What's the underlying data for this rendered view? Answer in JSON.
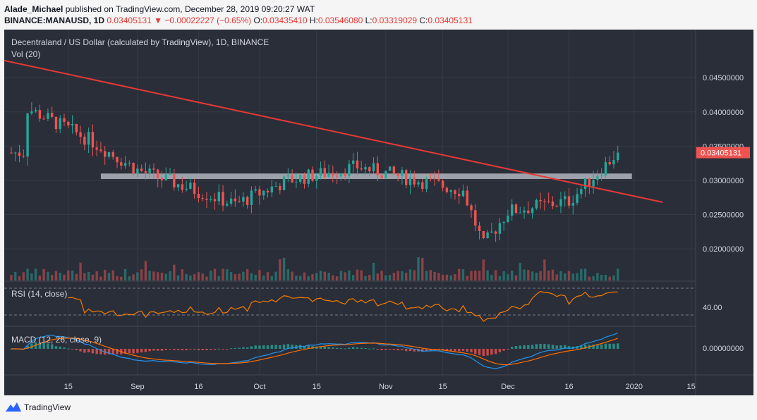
{
  "header": {
    "author": "Alade_Michael",
    "published": "published on TradingView.com, December 28, 2019 09:20:27 WAT",
    "symbol": "BINANCE:MANAUSD, 1D",
    "last": "0.03405131",
    "change_arrow": "▼",
    "change": "−0.00022227 (−0.65%)",
    "o_label": "O:",
    "o": "0.03435410",
    "h_label": "H:",
    "h": "0.03546080",
    "l_label": "L:",
    "l": "0.03319029",
    "c_label": "C:",
    "c": "0.03405131"
  },
  "chart_title": "Decentraland / US Dollar (calculated by TradingView), 1D, BINANCE",
  "vol_label": "Vol (20)",
  "rsi_label": "RSI (14, close)",
  "macd_label": "MACD (12, 26, close, 9)",
  "price_badge": "0.03405131",
  "footer": {
    "brand": "TradingView",
    "logo_icon": "tradingview-logo-icon"
  },
  "colors": {
    "up": "#26a69a",
    "down": "#ef5350",
    "bg": "#2a2e39",
    "trendline": "#e53935",
    "zone": "#b2b5be",
    "rsi": "#f57c00",
    "macd": "#2196f3",
    "signal": "#ff6d00"
  },
  "chart_data": [
    {
      "type": "candlestick",
      "title": "Decentraland / US Dollar (calculated by TradingView), 1D, BINANCE",
      "x_ticks": [
        "15",
        "Sep",
        "16",
        "Oct",
        "15",
        "Nov",
        "15",
        "Dec",
        "16",
        "2020",
        "15"
      ],
      "y_ticks": [
        "0.04500000",
        "0.04000000",
        "0.03500000",
        "0.03000000",
        "0.02500000",
        "0.02000000"
      ],
      "ylim": [
        0.0162,
        0.0477
      ],
      "key_points": [
        {
          "date": "Aug 5, 2019",
          "close": 0.0405
        },
        {
          "date": "Aug 20, 2019",
          "close": 0.036
        },
        {
          "date": "Sep 1, 2019",
          "close": 0.0315
        },
        {
          "date": "Sep 25, 2019",
          "close": 0.0265
        },
        {
          "date": "Oct 8, 2019",
          "close": 0.03
        },
        {
          "date": "Oct 25, 2019",
          "close": 0.032
        },
        {
          "date": "Nov 20, 2019",
          "close": 0.0285
        },
        {
          "date": "Nov 25, 2019",
          "close": 0.0205
        },
        {
          "date": "Dec 1, 2019",
          "close": 0.0255
        },
        {
          "date": "Dec 16, 2019",
          "close": 0.027
        },
        {
          "date": "Dec 28, 2019",
          "close": 0.03405131
        }
      ],
      "trendline": {
        "from": {
          "date": "Jul 28, 2019",
          "price": 0.0478
        },
        "to": {
          "date": "Jan 8, 2020",
          "price": 0.0268
        }
      },
      "support_zone": [
        0.0302,
        0.031
      ],
      "last_price": 0.03405131
    },
    {
      "type": "line",
      "title": "RSI (14, close)",
      "y_ticks": [
        "40.00"
      ],
      "bands": [
        70,
        30
      ],
      "last_value": 71
    },
    {
      "type": "bar",
      "title": "MACD (12, 26, close, 9)",
      "y_ticks": [
        "0.00000000"
      ],
      "series": [
        {
          "name": "MACD"
        },
        {
          "name": "Signal"
        },
        {
          "name": "Histogram"
        }
      ]
    }
  ]
}
